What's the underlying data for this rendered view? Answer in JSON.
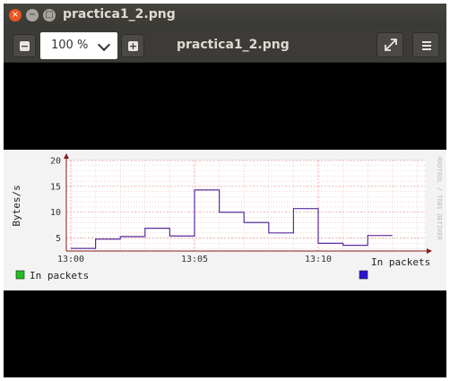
{
  "window": {
    "title": "practica1_2.png",
    "close_glyph": "×",
    "min_glyph": "−",
    "max_glyph": "□"
  },
  "toolbar": {
    "zoom_out_glyph": "−",
    "zoom_in_glyph": "+",
    "zoom_value": "100 %",
    "file_name": "practica1_2.png",
    "fullscreen_icon": "fullscreen-icon",
    "menu_icon": "hamburger-menu-icon"
  },
  "colors": {
    "line": "#5a2d9c",
    "grid": "#e8a8a8",
    "axis": "#8b1a1a",
    "legend_green": "#20c020",
    "legend_blue": "#2d14d2"
  },
  "chart_data": {
    "type": "line",
    "ylabel": "Bytes/s",
    "watermark": "RRDTOOL / TOBI OETIKER",
    "x_axis_label": "In packets",
    "legend": "In packets",
    "x_ticks": [
      "13:00",
      "13:05",
      "13:10"
    ],
    "y_ticks": [
      5,
      10,
      15,
      20
    ],
    "ylim": [
      2.5,
      20
    ],
    "step": true,
    "series": [
      {
        "x": [
          "13:00",
          "13:01",
          "13:02",
          "13:03",
          "13:04",
          "13:05",
          "13:06",
          "13:07",
          "13:08",
          "13:09",
          "13:10",
          "13:11",
          "13:12"
        ],
        "values": [
          3,
          4.8,
          5.3,
          6.9,
          5.4,
          14.3,
          10.0,
          8.0,
          6.0,
          10.7,
          4.0,
          3.6,
          5.5
        ]
      }
    ],
    "grid": true
  }
}
